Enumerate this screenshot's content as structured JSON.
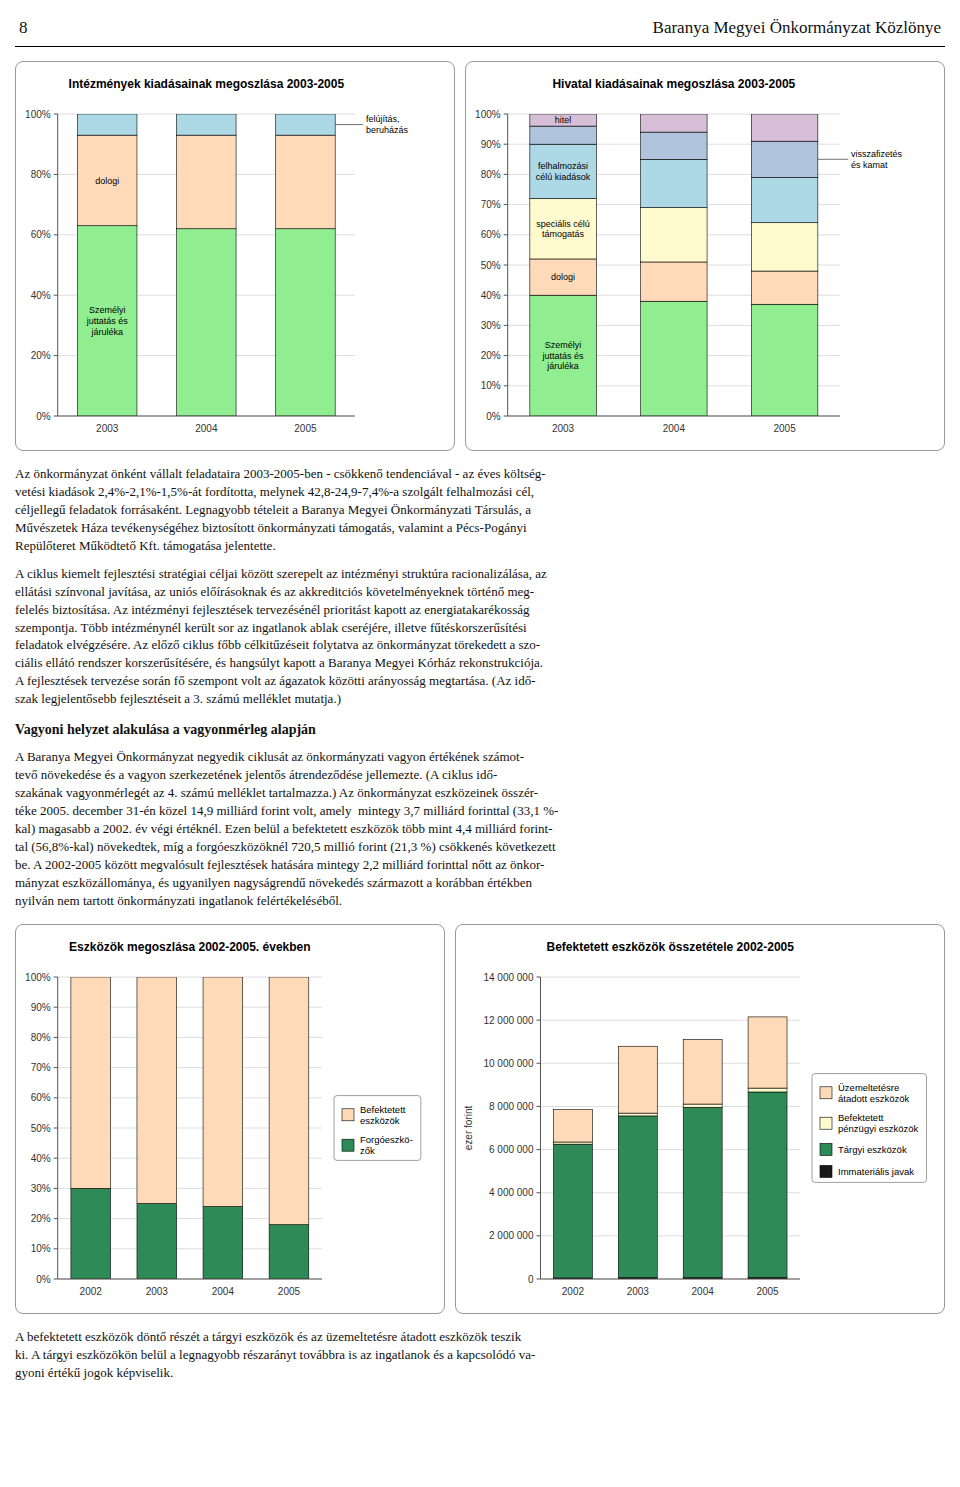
{
  "page": {
    "header_number": "8",
    "header_title": "Baranya Megyei Önkormányzat Közlönye",
    "section_title": "Vagyoni helyzet alakulása a vagyonmérleg alapján",
    "paragraphs": [
      "Az önkormányzat önként vállalt feladataira 2003-2005-ben - csökkenő tendenciával - az éves költség-\nvetési kiadások 2,4%-2,1%-1,5%-át fordította, melynek 42,8-24,9-7,4%-a szolgált felhalmozási cél,\ncéljellegű feladatok forrásaként. Legnagyobb tételeit a Baranya Megyei Önkormányzati Társulás, a\nMűvészetek Háza tevékenységéhez biztosított önkormányzati támogatás, valamint a Pécs-Pogányi\nRepülőteret Működtető Kft. támogatása jelentette.",
      "A ciklus kiemelt fejlesztési stratégiai céljai között szerepelt az intézményi struktúra racionalizálása, az\nellátási színvonal javítása, az uniós előírásoknak és az akkreditciós követelményeknek történő meg-\nfelelés biztosítása. Az intézményi fejlesztések tervezésénél prioritást kapott az energiatakarékosság\nszempontja. Több intézménynél került sor az ingatlanok ablak cseréjére, illetve fűtéskorszerűsítési\nfeladatok elvégzésére. Az előző ciklus főbb célkitűzéseit folytatva az önkormányzat törekedett a szo-\nciális ellátó rendszer korszerűsítésére, és hangsúlyt kapott a Baranya Megyei Kórház rekonstrukciója.\nA fejlesztések tervezése során fő szempont volt az ágazatok közötti arányosság megtartása. (Az idő-\nszak legjelentősebb fejlesztéseit a 3. számú melléklet mutatja.)",
      "A Baranya Megyei Önkormányzat negyedik ciklusát az önkormányzati vagyon értékének számot-\ntevő növekedése és a vagyon szerkezetének jelentős átrendeződése jellemezte. (A ciklus idő-\nszakának vagyonmérlegét az 4. számú melléklet tartalmazza.) Az önkormányzat eszközeinek összér-\ntéke 2005. december 31-én közel 14,9 milliárd forint volt, amely  mintegy 3,7 milliárd forinttal (33,1 %-\nkal) magasabb a 2002. év végi értéknél. Ezen belül a befektetett eszközök több mint 4,4 milliárd forint-\ntal (56,8%-kal) növekedtek, míg a forgóeszközöknél 720,5 millió forint (21,3 %) csökkenés következett\nbe. A 2002-2005 között megvalósult fejlesztések hatására mintegy 2,2 milliárd forinttal nőtt az önkor-\nmányzat eszközállománya, és ugyanilyen nagyságrendű növekedés származott a korábban értékben\nnyilván nem tartott önkormányzati ingatlanok felértékeléséből.",
      "A befektetett eszközök döntő részét a tárgyi eszközök és az üzemeltetésre átadott eszközök teszik\nki. A tárgyi eszközökön belül a legnagyobb részarányt továbbra is az ingatlanok és a kapcsolódó va-\ngyoni értékű jogok képviselik."
    ]
  },
  "chart_data": [
    {
      "type": "bar",
      "stacked": true,
      "grid": true,
      "title": "Intézmények kiadásainak megoszlása 2003-2005",
      "categories": [
        "2003",
        "2004",
        "2005"
      ],
      "series": [
        {
          "name": "Személyi\njuttatás és\njáruléka",
          "color": "#90EE90",
          "values": [
            63,
            62,
            62
          ]
        },
        {
          "name": "dologi",
          "color": "#FFDAB9",
          "values": [
            30,
            31,
            31
          ]
        },
        {
          "name": "felújítás,\nberuházás",
          "color": "#ADD8E6",
          "values": [
            7,
            7,
            7
          ]
        }
      ],
      "ylim": [
        0,
        100
      ],
      "yticks": [
        {
          "value": 0,
          "label": "0%"
        },
        {
          "value": 20,
          "label": "20%"
        },
        {
          "value": 40,
          "label": "40%"
        },
        {
          "value": 60,
          "label": "60%"
        },
        {
          "value": 80,
          "label": "80%"
        },
        {
          "value": 100,
          "label": "100%"
        }
      ]
    },
    {
      "type": "bar",
      "stacked": true,
      "grid": true,
      "title": "Hivatal kiadásainak megoszlása 2003-2005",
      "categories": [
        "2003",
        "2004",
        "2005"
      ],
      "series": [
        {
          "name": "Személyi\njuttatás és\njáruléka",
          "color": "#90EE90",
          "values": [
            40,
            38,
            37
          ]
        },
        {
          "name": "dologi",
          "color": "#FFDAB9",
          "values": [
            12,
            13,
            11
          ]
        },
        {
          "name": "speciális célú\ntámogatás",
          "color": "#FFFACD",
          "values": [
            20,
            18,
            16
          ]
        },
        {
          "name": "felhalmozási\ncélú kiadások",
          "color": "#ADD8E6",
          "values": [
            18,
            16,
            15
          ]
        },
        {
          "name": "visszafizetés\nés kamat",
          "color": "#B0C4DE",
          "values": [
            6,
            9,
            12
          ]
        },
        {
          "name": "hitel",
          "color": "#D8BFD8",
          "values": [
            4,
            6,
            9
          ]
        }
      ],
      "ylim": [
        0,
        100
      ],
      "yticks": [
        {
          "value": 0,
          "label": "0%"
        },
        {
          "value": 10,
          "label": "10%"
        },
        {
          "value": 20,
          "label": "20%"
        },
        {
          "value": 30,
          "label": "30%"
        },
        {
          "value": 40,
          "label": "40%"
        },
        {
          "value": 50,
          "label": "50%"
        },
        {
          "value": 60,
          "label": "60%"
        },
        {
          "value": 70,
          "label": "70%"
        },
        {
          "value": 80,
          "label": "80%"
        },
        {
          "value": 90,
          "label": "90%"
        },
        {
          "value": 100,
          "label": "100%"
        }
      ]
    },
    {
      "type": "bar",
      "stacked": true,
      "grid": true,
      "legend": "right",
      "title": "Eszközök megoszlása 2002-2005. években",
      "categories": [
        "2002",
        "2003",
        "2004",
        "2005"
      ],
      "series": [
        {
          "name": "Forgóeszkö-\nzők",
          "color": "#2E8B57",
          "values": [
            30,
            25,
            24,
            18
          ]
        },
        {
          "name": "Befektetett\neszközök",
          "color": "#FFDAB9",
          "values": [
            70,
            75,
            76,
            82
          ]
        }
      ],
      "ylim": [
        0,
        100
      ],
      "yticks": [
        {
          "value": 0,
          "label": "0%"
        },
        {
          "value": 10,
          "label": "10%"
        },
        {
          "value": 20,
          "label": "20%"
        },
        {
          "value": 30,
          "label": "30%"
        },
        {
          "value": 40,
          "label": "40%"
        },
        {
          "value": 50,
          "label": "50%"
        },
        {
          "value": 60,
          "label": "60%"
        },
        {
          "value": 70,
          "label": "70%"
        },
        {
          "value": 80,
          "label": "80%"
        },
        {
          "value": 90,
          "label": "90%"
        },
        {
          "value": 100,
          "label": "100%"
        }
      ]
    },
    {
      "type": "bar",
      "stacked": true,
      "grid": true,
      "legend": "right",
      "title": "Befektetett eszközök összetétele 2002-2005",
      "ylabel": "ezer forint",
      "categories": [
        "2002",
        "2003",
        "2004",
        "2005"
      ],
      "series": [
        {
          "name": "Immateriális javak",
          "color": "#1a1a1a",
          "values": [
            50000,
            60000,
            60000,
            70000
          ]
        },
        {
          "name": "Tárgyi eszközök",
          "color": "#2E8B57",
          "values": [
            6200000,
            7500000,
            7900000,
            8600000
          ]
        },
        {
          "name": "Befektetett\npénzügyi eszközök",
          "color": "#FFFACD",
          "values": [
            100000,
            130000,
            150000,
            180000
          ]
        },
        {
          "name": "Üzemeltetésre\nátadott eszközök",
          "color": "#FFDAB9",
          "values": [
            1500000,
            3100000,
            3000000,
            3300000
          ]
        }
      ],
      "ylim": [
        0,
        14000000
      ],
      "yticks": [
        0,
        {
          "value": 2000000,
          "label": "2 000 000"
        },
        {
          "value": 4000000,
          "label": "4 000 000"
        },
        {
          "value": 6000000,
          "label": "6 000 000"
        },
        {
          "value": 8000000,
          "label": "8 000 000"
        },
        {
          "value": 10000000,
          "label": "10 000 000"
        },
        {
          "value": 12000000,
          "label": "12 000 000"
        },
        {
          "value": 14000000,
          "label": "14 000 000"
        }
      ]
    }
  ]
}
